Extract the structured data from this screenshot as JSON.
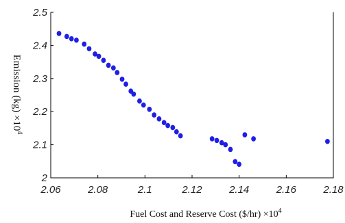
{
  "chart_data": {
    "type": "scatter",
    "xlabel": "Fuel Cost and Reserve  Cost ($/hr) ×10",
    "xlabel_sup": "4",
    "ylabel": "Emission  (kg) ×10",
    "ylabel_sup": "4",
    "xlim": [
      2.06,
      2.18
    ],
    "ylim": [
      2.0,
      2.5
    ],
    "xticks": [
      "2.06",
      "2.08",
      "2.1",
      "2.12",
      "2.14",
      "2.16",
      "2.18"
    ],
    "yticks": [
      "2",
      "2.1",
      "2.2",
      "2.3",
      "2.4",
      "2.5"
    ],
    "grid": false,
    "marker_color": "#1f1fe6",
    "series": [
      {
        "x": [
          2.0635,
          2.0668,
          2.0688,
          2.0709,
          2.0742,
          2.0763,
          2.0788,
          2.0804,
          2.0824,
          2.0845,
          2.0866,
          2.0882,
          2.0903,
          2.0919,
          2.094,
          2.0952,
          2.0977,
          2.0994,
          2.1019,
          2.1039,
          2.106,
          2.1081,
          2.1097,
          2.1118,
          2.1134,
          2.1151,
          2.1285,
          2.1305,
          2.1326,
          2.1342,
          2.1363,
          2.1383,
          2.14,
          2.1424,
          2.1461,
          2.1775
        ],
        "y": [
          2.436,
          2.427,
          2.42,
          2.416,
          2.404,
          2.39,
          2.374,
          2.367,
          2.355,
          2.34,
          2.332,
          2.318,
          2.298,
          2.283,
          2.262,
          2.253,
          2.232,
          2.22,
          2.207,
          2.19,
          2.178,
          2.167,
          2.158,
          2.152,
          2.139,
          2.127,
          2.118,
          2.113,
          2.106,
          2.1,
          2.086,
          2.049,
          2.041,
          2.13,
          2.118,
          2.11
        ]
      }
    ]
  }
}
